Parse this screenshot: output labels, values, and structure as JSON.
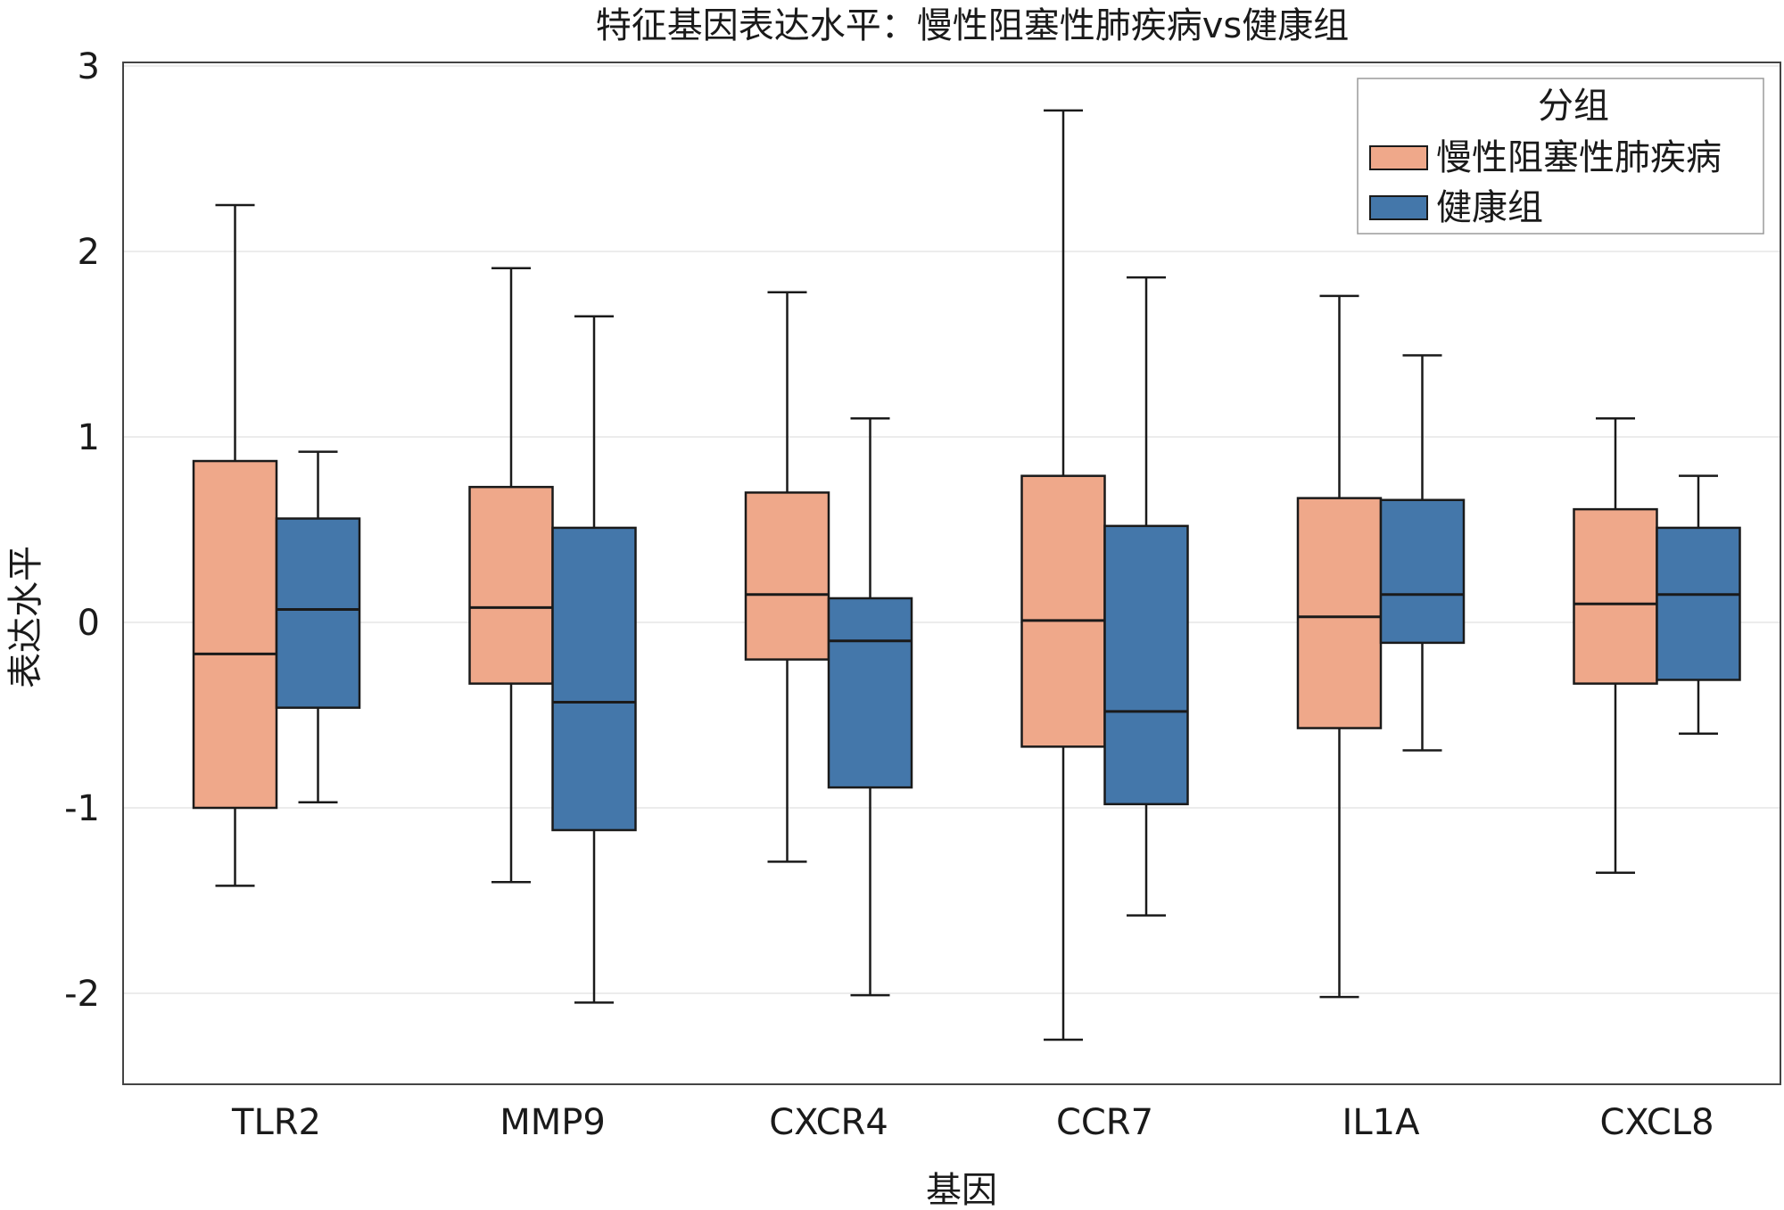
{
  "chart_data": {
    "type": "boxplot",
    "title": "特征基因表达水平：慢性阻塞性肺疾病vs健康组",
    "xlabel": "基因",
    "ylabel": "表达水平",
    "ylim": [
      -2.5,
      3
    ],
    "yticks": [
      3,
      2,
      1,
      0,
      -1,
      -2
    ],
    "grid": true,
    "legend": {
      "title": "分组",
      "position": "top-right"
    },
    "categories": [
      "TLR2",
      "MMP9",
      "CXCR4",
      "CCR7",
      "IL1A",
      "CXCL8"
    ],
    "series": [
      {
        "name": "慢性阻塞性肺疾病",
        "color": "#EFA88A",
        "boxes": [
          {
            "min": -1.42,
            "q1": -1.0,
            "median": -0.17,
            "q3": 0.87,
            "max": 2.25
          },
          {
            "min": -1.4,
            "q1": -0.33,
            "median": 0.08,
            "q3": 0.73,
            "max": 1.91
          },
          {
            "min": -1.29,
            "q1": -0.2,
            "median": 0.15,
            "q3": 0.7,
            "max": 1.78
          },
          {
            "min": -2.25,
            "q1": -0.67,
            "median": 0.01,
            "q3": 0.79,
            "max": 2.76
          },
          {
            "min": -2.02,
            "q1": -0.57,
            "median": 0.03,
            "q3": 0.67,
            "max": 1.76
          },
          {
            "min": -1.35,
            "q1": -0.33,
            "median": 0.1,
            "q3": 0.61,
            "max": 1.1
          }
        ]
      },
      {
        "name": "健康组",
        "color": "#4477AA",
        "boxes": [
          {
            "min": -0.97,
            "q1": -0.46,
            "median": 0.07,
            "q3": 0.56,
            "max": 0.92
          },
          {
            "min": -2.05,
            "q1": -1.12,
            "median": -0.43,
            "q3": 0.51,
            "max": 1.65
          },
          {
            "min": -2.01,
            "q1": -0.89,
            "median": -0.1,
            "q3": 0.13,
            "max": 1.1
          },
          {
            "min": -1.58,
            "q1": -0.98,
            "median": -0.48,
            "q3": 0.52,
            "max": 1.86
          },
          {
            "min": -0.69,
            "q1": -0.11,
            "median": 0.15,
            "q3": 0.66,
            "max": 1.44
          },
          {
            "min": -0.6,
            "q1": -0.31,
            "median": 0.15,
            "q3": 0.51,
            "max": 0.79
          }
        ]
      }
    ]
  }
}
